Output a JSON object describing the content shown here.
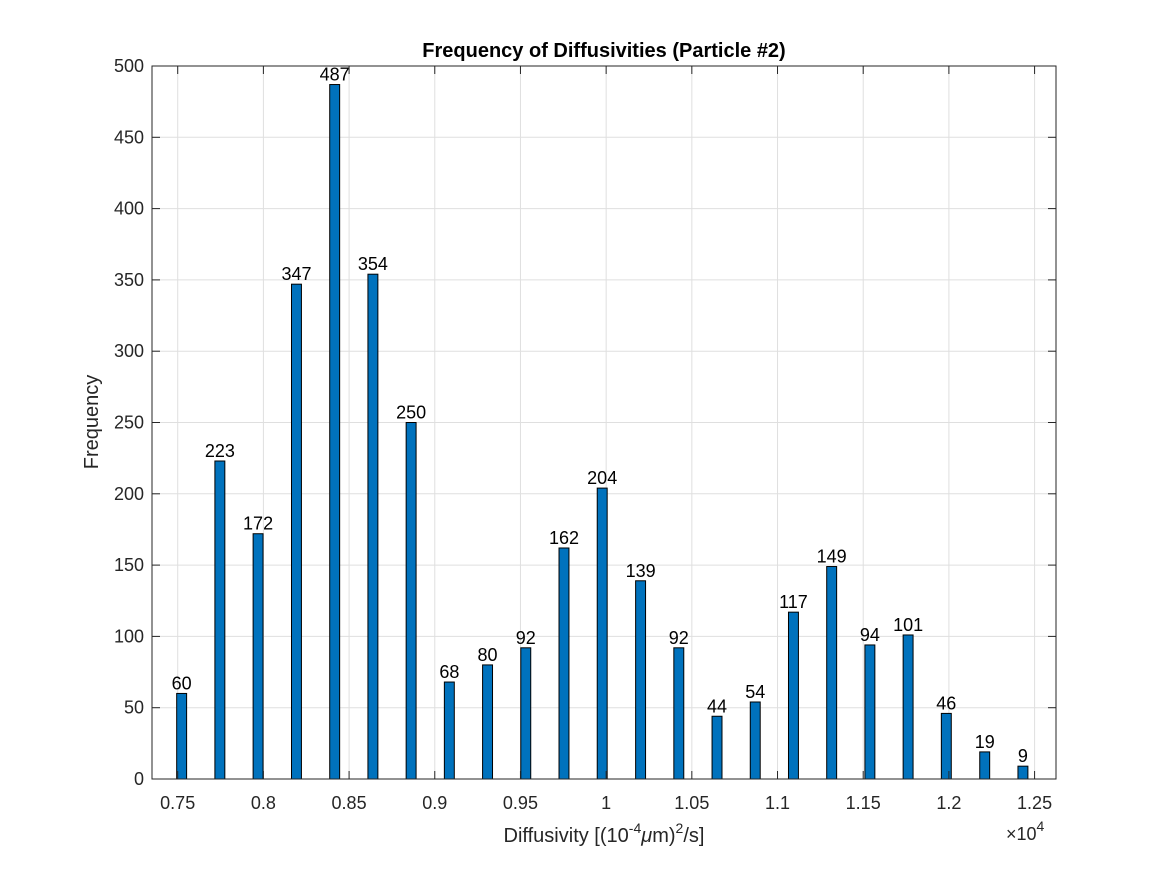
{
  "chart_data": {
    "type": "bar",
    "title": "Frequency of Diffusivities (Particle #2)",
    "xlabel": {
      "prefix": "Diffusivity [(10",
      "exp1": "-4",
      "mu": "μ",
      "mid": "m)",
      "exp2": "2",
      "suffix": "/s]"
    },
    "ylabel": "Frequency",
    "x_exponent": {
      "times": "×",
      "base": "10",
      "power": "4"
    },
    "xlim": [
      0.735,
      1.2625
    ],
    "ylim": [
      0,
      500
    ],
    "xticks": [
      0.75,
      0.8,
      0.85,
      0.9,
      0.95,
      1.0,
      1.05,
      1.1,
      1.15,
      1.2,
      1.25
    ],
    "xtick_labels": [
      "0.75",
      "0.8",
      "0.85",
      "0.9",
      "0.95",
      "1",
      "1.05",
      "1.1",
      "1.15",
      "1.2",
      "1.25"
    ],
    "yticks": [
      0,
      50,
      100,
      150,
      200,
      250,
      300,
      350,
      400,
      450,
      500
    ],
    "ytick_labels": [
      "0",
      "50",
      "100",
      "150",
      "200",
      "250",
      "300",
      "350",
      "400",
      "450",
      "500"
    ],
    "bar_width": 0.0058,
    "grid": true,
    "bar_color": "#0072BD",
    "x": [
      0.7523,
      0.7746,
      0.7969,
      0.8193,
      0.8416,
      0.8639,
      0.8862,
      0.9085,
      0.9308,
      0.9531,
      0.9754,
      0.9977,
      1.0201,
      1.0424,
      1.0647,
      1.087,
      1.1093,
      1.1316,
      1.1539,
      1.1762,
      1.1985,
      1.2209,
      1.2432
    ],
    "values": [
      60,
      223,
      172,
      347,
      487,
      354,
      250,
      68,
      80,
      92,
      162,
      204,
      139,
      92,
      44,
      54,
      117,
      149,
      94,
      101,
      46,
      19,
      9
    ]
  }
}
